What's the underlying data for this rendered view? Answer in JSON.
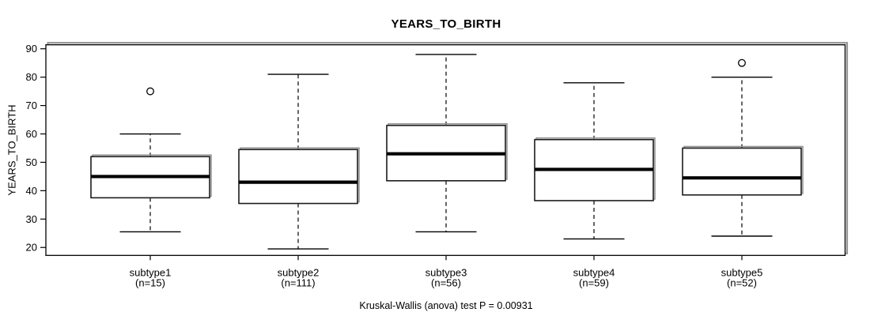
{
  "colors": {
    "background": "#ffffff",
    "line": "#000000",
    "box_fill": "#ffffff",
    "box_stroke": "#1c1c1c",
    "shadow": "#949494"
  },
  "chart_data": {
    "type": "boxplot",
    "title": "YEARS_TO_BIRTH",
    "xlabel": "",
    "ylabel": "YEARS_TO_BIRTH",
    "ylim": [
      17.2,
      91.4
    ],
    "yticks": [
      20,
      30,
      40,
      50,
      60,
      70,
      80,
      90
    ],
    "grid": false,
    "annotation": "Kruskal-Wallis (anova) test P = 0.00931",
    "groups": [
      {
        "label": "subtype1",
        "n_label": "(n=15)",
        "n": 15,
        "whisker_low": 25.5,
        "q1": 37.5,
        "median": 45,
        "q3": 52,
        "whisker_high": 60,
        "outliers": [
          75
        ]
      },
      {
        "label": "subtype2",
        "n_label": "(n=111)",
        "n": 111,
        "whisker_low": 19.5,
        "q1": 35.5,
        "median": 43,
        "q3": 54.5,
        "whisker_high": 81,
        "outliers": []
      },
      {
        "label": "subtype3",
        "n_label": "(n=56)",
        "n": 56,
        "whisker_low": 25.5,
        "q1": 43.5,
        "median": 53,
        "q3": 63,
        "whisker_high": 88,
        "outliers": []
      },
      {
        "label": "subtype4",
        "n_label": "(n=59)",
        "n": 59,
        "whisker_low": 23,
        "q1": 36.5,
        "median": 47.5,
        "q3": 58,
        "whisker_high": 78,
        "outliers": []
      },
      {
        "label": "subtype5",
        "n_label": "(n=52)",
        "n": 52,
        "whisker_low": 24,
        "q1": 38.5,
        "median": 44.5,
        "q3": 55,
        "whisker_high": 80,
        "outliers": [
          85
        ]
      }
    ]
  }
}
